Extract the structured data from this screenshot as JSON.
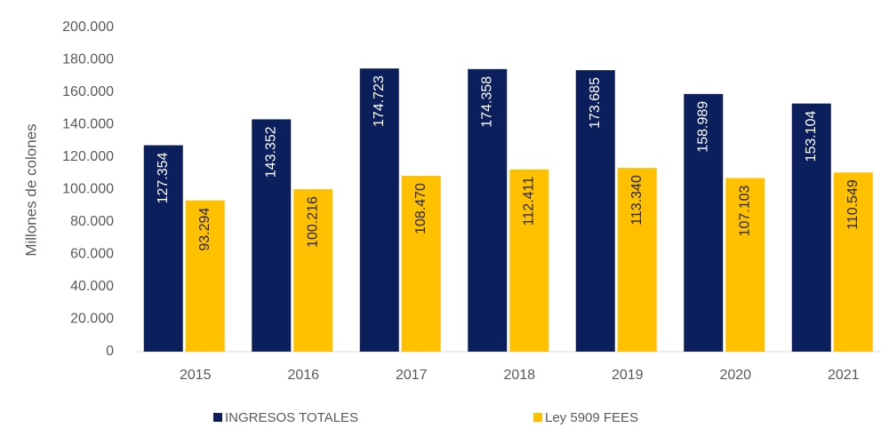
{
  "chart_data": {
    "type": "bar",
    "ylabel": "Millones  de colones",
    "categories": [
      "2015",
      "2016",
      "2017",
      "2018",
      "2019",
      "2020",
      "2021"
    ],
    "series": [
      {
        "name": "INGRESOS TOTALES",
        "color": "#0b1f5c",
        "values": [
          127354,
          143352,
          174723,
          174358,
          173685,
          158989,
          153104
        ],
        "value_labels": [
          "127.354",
          "143.352",
          "174.723",
          "174.358",
          "173.685",
          "158.989",
          "153.104"
        ]
      },
      {
        "name": "Ley 5909 FEES",
        "color": "#ffc000",
        "values": [
          93294,
          100216,
          108470,
          112411,
          113340,
          107103,
          110549
        ],
        "value_labels": [
          "93.294",
          "100.216",
          "108.470",
          "112.411",
          "113.340",
          "107.103",
          "110.549"
        ]
      }
    ],
    "ylim": [
      0,
      200000
    ],
    "yticks": [
      0,
      {
        "value": 20000,
        "label": "20.000"
      },
      {
        "value": 40000,
        "label": "40.000"
      },
      {
        "value": 60000,
        "label": "60.000"
      },
      {
        "value": 80000,
        "label": "80.000"
      },
      {
        "value": 100000,
        "label": "100.000"
      },
      {
        "value": 120000,
        "label": "120.000"
      },
      {
        "value": 140000,
        "label": "140.000"
      },
      {
        "value": 160000,
        "label": "160.000"
      },
      {
        "value": 180000,
        "label": "180.000"
      },
      {
        "value": 200000,
        "label": "200.000"
      }
    ],
    "grid": false,
    "legend": "bottom"
  }
}
